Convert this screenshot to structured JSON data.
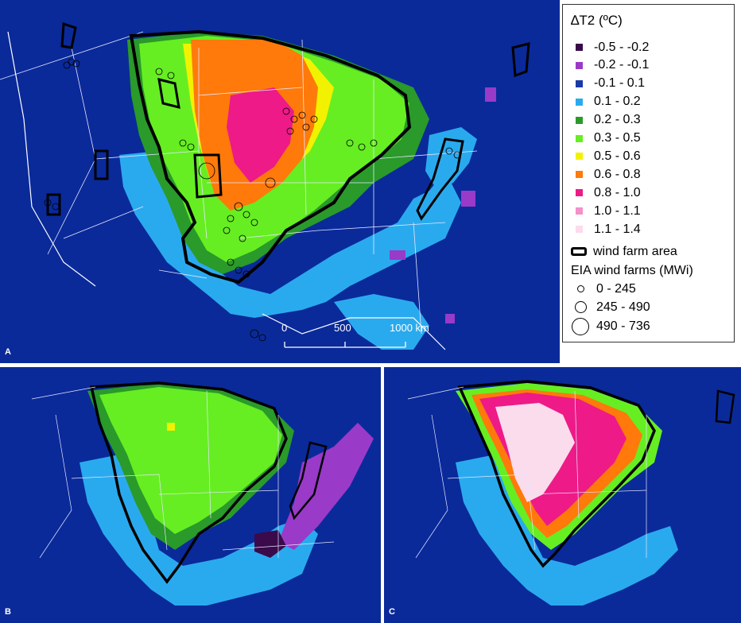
{
  "panels": {
    "a_label": "A",
    "b_label": "B",
    "c_label": "C"
  },
  "scale_bar": {
    "ticks": [
      "0",
      "500",
      "1000 km"
    ]
  },
  "legend": {
    "title": "∆T2 (ºC)",
    "classes": [
      {
        "label": "-0.5 - -0.2",
        "color": "#3a0a4a"
      },
      {
        "label": "-0.2 - -0.1",
        "color": "#9a3ac8"
      },
      {
        "label": "-0.1 - 0.1",
        "color": "#1a3aa8"
      },
      {
        "label": "0.1 - 0.2",
        "color": "#2aaaee"
      },
      {
        "label": "0.2 - 0.3",
        "color": "#2a9a2a"
      },
      {
        "label": "0.3 - 0.5",
        "color": "#66ee22"
      },
      {
        "label": "0.5 - 0.6",
        "color": "#f2f200"
      },
      {
        "label": "0.6 - 0.8",
        "color": "#ff7a0a"
      },
      {
        "label": "0.8 - 1.0",
        "color": "#ee1a88"
      },
      {
        "label": "1.0 - 1.1",
        "color": "#f590c8"
      },
      {
        "label": "1.1 - 1.4",
        "color": "#fadcec"
      }
    ],
    "wind_farm_area_label": "wind farm area",
    "eia_title": "EIA wind farms (MWi)",
    "eia_classes": [
      "0 - 245",
      "245 - 490",
      "490 - 736"
    ]
  }
}
